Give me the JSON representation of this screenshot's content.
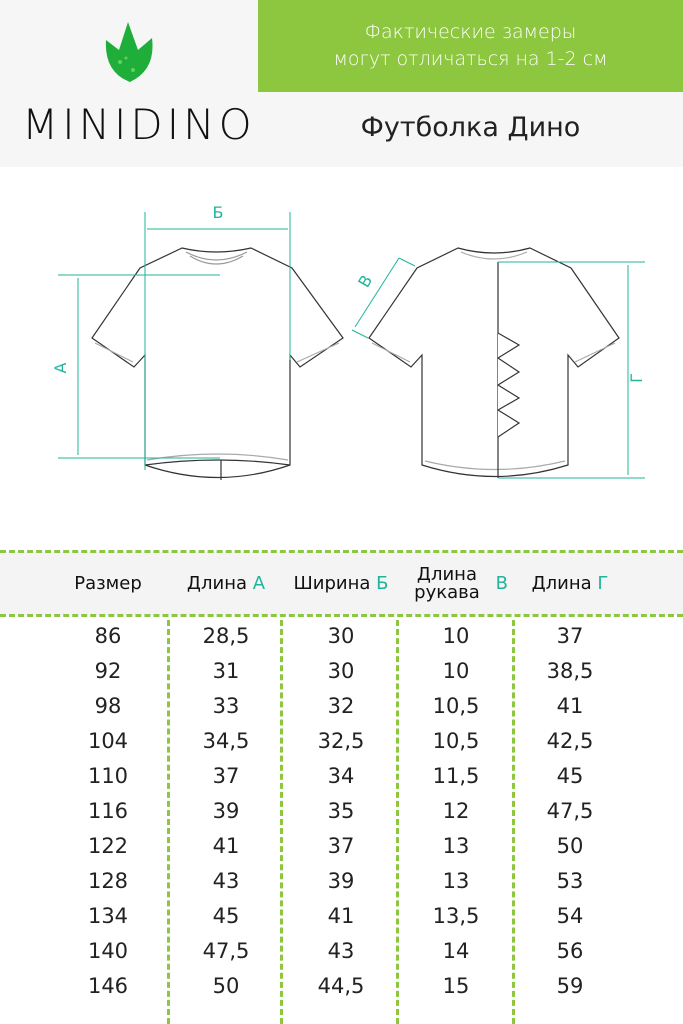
{
  "brand": {
    "name": "MINIDINO",
    "leaf_color": "#1fae3a"
  },
  "notice": {
    "line1": "Фактические замеры",
    "line2": "могут отличаться на 1-2 см",
    "bg_color": "#8dc63f"
  },
  "product_title": "Футболка Дино",
  "diagram": {
    "labels": {
      "a": "А",
      "b": "Б",
      "v": "В",
      "g": "Г"
    },
    "accent_color": "#20b59a"
  },
  "table": {
    "headers": [
      {
        "text": "Размер",
        "letter": ""
      },
      {
        "text": "Длина",
        "letter": "А"
      },
      {
        "text": "Ширина",
        "letter": "Б"
      },
      {
        "text": "Длина рукава",
        "letter": "В"
      },
      {
        "text": "Длина",
        "letter": "Г"
      }
    ],
    "rows": [
      [
        "86",
        "28,5",
        "30",
        "10",
        "37"
      ],
      [
        "92",
        "31",
        "30",
        "10",
        "38,5"
      ],
      [
        "98",
        "33",
        "32",
        "10,5",
        "41"
      ],
      [
        "104",
        "34,5",
        "32,5",
        "10,5",
        "42,5"
      ],
      [
        "110",
        "37",
        "34",
        "11,5",
        "45"
      ],
      [
        "116",
        "39",
        "35",
        "12",
        "47,5"
      ],
      [
        "122",
        "41",
        "37",
        "13",
        "50"
      ],
      [
        "128",
        "43",
        "39",
        "13",
        "53"
      ],
      [
        "134",
        "45",
        "41",
        "13,5",
        "54"
      ],
      [
        "140",
        "47,5",
        "43",
        "14",
        "56"
      ],
      [
        "146",
        "50",
        "44,5",
        "15",
        "59"
      ]
    ]
  }
}
